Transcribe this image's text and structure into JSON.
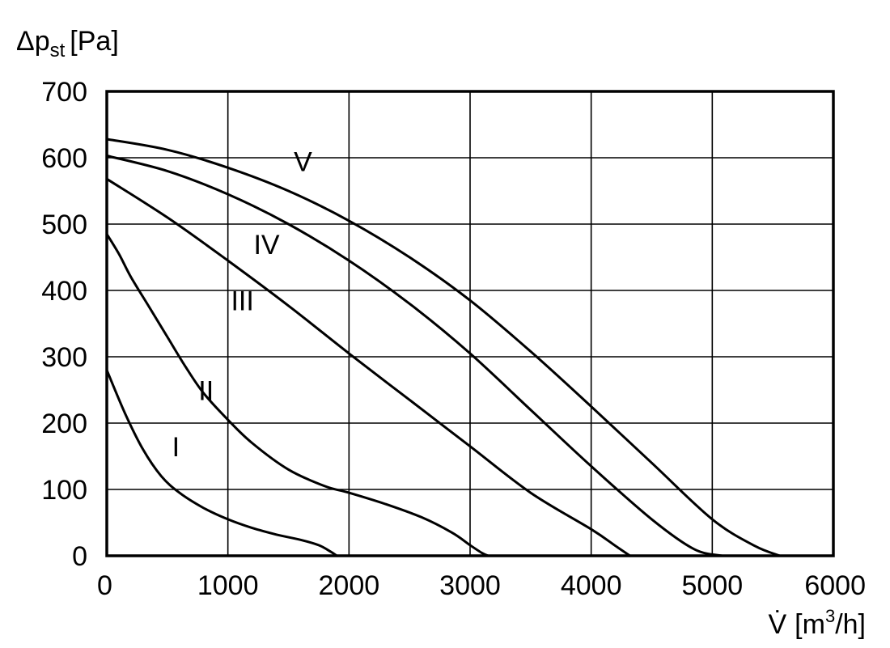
{
  "chart_data": {
    "type": "line",
    "ylabel": "Δp",
    "ylabel_sub": "st",
    "ylabel_unit": "[Pa]",
    "xlabel": "V̇",
    "xlabel_unit_pre": "[m",
    "xlabel_unit_sup": "3",
    "xlabel_unit_post": "/h]",
    "xlim": [
      0,
      6000
    ],
    "ylim": [
      0,
      700
    ],
    "x_ticks": [
      "0",
      "1000",
      "2000",
      "3000",
      "4000",
      "5000",
      "6000"
    ],
    "y_ticks": [
      "0",
      "100",
      "200",
      "300",
      "400",
      "500",
      "600",
      "700"
    ],
    "grid": true,
    "series": [
      {
        "name": "I",
        "label_at": [
          570,
          150
        ],
        "points": [
          [
            0,
            280
          ],
          [
            150,
            215
          ],
          [
            300,
            160
          ],
          [
            450,
            120
          ],
          [
            600,
            95
          ],
          [
            800,
            72
          ],
          [
            1000,
            55
          ],
          [
            1200,
            42
          ],
          [
            1400,
            32
          ],
          [
            1600,
            24
          ],
          [
            1750,
            16
          ],
          [
            1850,
            6
          ],
          [
            1900,
            0
          ]
        ]
      },
      {
        "name": "II",
        "label_at": [
          820,
          235
        ],
        "points": [
          [
            0,
            485
          ],
          [
            100,
            455
          ],
          [
            200,
            420
          ],
          [
            350,
            375
          ],
          [
            500,
            330
          ],
          [
            650,
            285
          ],
          [
            800,
            245
          ],
          [
            1000,
            205
          ],
          [
            1200,
            170
          ],
          [
            1500,
            130
          ],
          [
            1800,
            105
          ],
          [
            2000,
            95
          ],
          [
            2300,
            78
          ],
          [
            2600,
            58
          ],
          [
            2850,
            35
          ],
          [
            3000,
            16
          ],
          [
            3100,
            4
          ],
          [
            3150,
            0
          ]
        ]
      },
      {
        "name": "III",
        "label_at": [
          1120,
          370
        ],
        "points": [
          [
            0,
            568
          ],
          [
            500,
            510
          ],
          [
            1000,
            445
          ],
          [
            1500,
            377
          ],
          [
            2000,
            305
          ],
          [
            2500,
            235
          ],
          [
            3000,
            165
          ],
          [
            3500,
            95
          ],
          [
            4000,
            40
          ],
          [
            4200,
            15
          ],
          [
            4320,
            0
          ]
        ]
      },
      {
        "name": "IV",
        "label_at": [
          1320,
          455
        ],
        "points": [
          [
            0,
            603
          ],
          [
            500,
            580
          ],
          [
            1000,
            545
          ],
          [
            1500,
            500
          ],
          [
            2000,
            445
          ],
          [
            2500,
            380
          ],
          [
            3000,
            305
          ],
          [
            3500,
            220
          ],
          [
            4000,
            135
          ],
          [
            4500,
            55
          ],
          [
            4850,
            10
          ],
          [
            5080,
            0
          ]
        ]
      },
      {
        "name": "V",
        "label_at": [
          1620,
          580
        ],
        "points": [
          [
            0,
            628
          ],
          [
            500,
            612
          ],
          [
            1000,
            585
          ],
          [
            1500,
            550
          ],
          [
            2000,
            505
          ],
          [
            2500,
            450
          ],
          [
            3000,
            385
          ],
          [
            3500,
            308
          ],
          [
            4000,
            225
          ],
          [
            4500,
            140
          ],
          [
            5000,
            55
          ],
          [
            5350,
            15
          ],
          [
            5560,
            0
          ]
        ]
      }
    ]
  }
}
